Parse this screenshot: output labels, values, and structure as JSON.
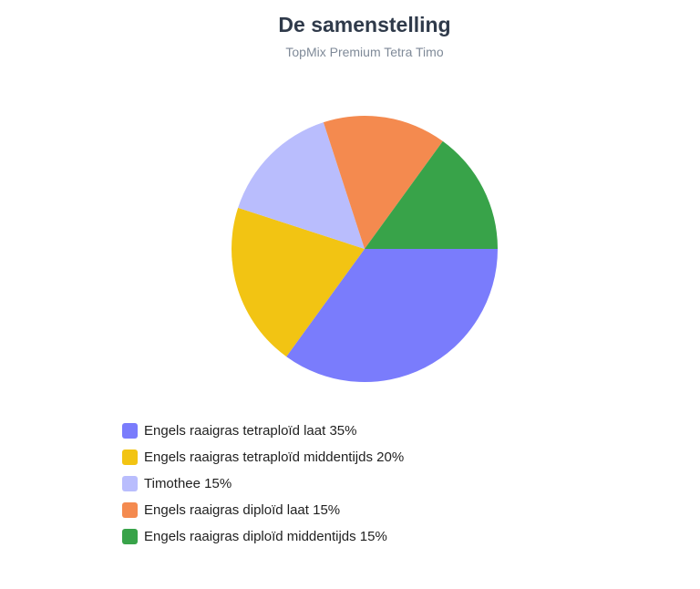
{
  "chart_data": {
    "type": "pie",
    "title": "De samenstelling",
    "subtitle": "TopMix Premium Tetra Timo",
    "slices": [
      {
        "label": "Engels raaigras tetraploïd laat 35%",
        "value": 35,
        "color": "#7a7cfc"
      },
      {
        "label": "Engels raaigras tetraploïd middentijds 20%",
        "value": 20,
        "color": "#f2c413"
      },
      {
        "label": "Timothee 15%",
        "value": 15,
        "color": "#b9bdfd"
      },
      {
        "label": "Engels raaigras diploïd laat 15%",
        "value": 15,
        "color": "#f48a4f"
      },
      {
        "label": "Engels raaigras diploïd middentijds 15%",
        "value": 15,
        "color": "#38a349"
      }
    ],
    "legend_position": "bottom-left"
  }
}
